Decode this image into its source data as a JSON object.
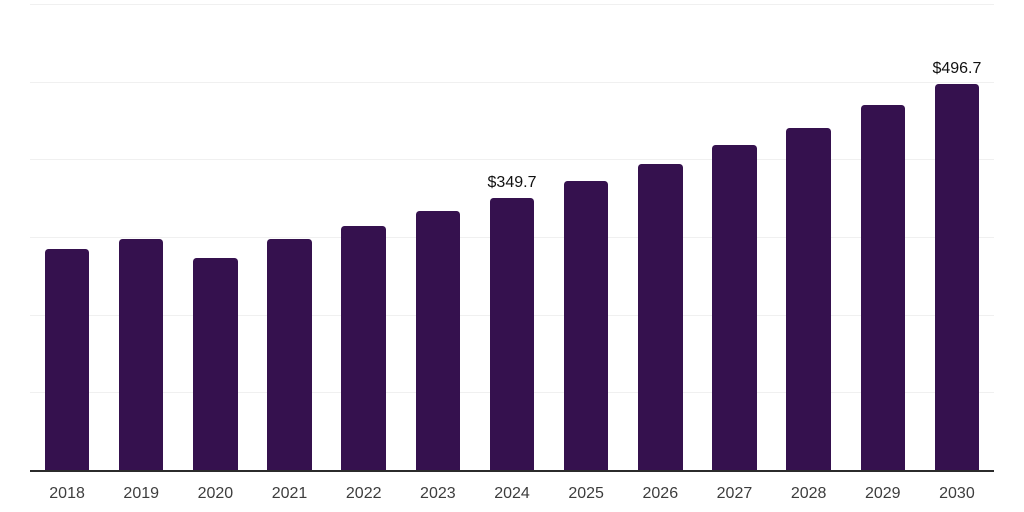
{
  "chart": {
    "background_color": "#ffffff",
    "bar_color": "#35114E",
    "axis_line_color": "#2b2b2b",
    "gridline_color": "#f0f0f0",
    "tick_label_color": "#3d3d3d",
    "value_label_color": "#111111"
  },
  "chart_data": {
    "type": "bar",
    "title": "",
    "xlabel": "",
    "ylabel": "",
    "categories": [
      "2018",
      "2019",
      "2020",
      "2021",
      "2022",
      "2023",
      "2024",
      "2025",
      "2026",
      "2027",
      "2028",
      "2029",
      "2030"
    ],
    "values": [
      285,
      298,
      273,
      297,
      314,
      333,
      349.7,
      372,
      394,
      418,
      441,
      470,
      496.7
    ],
    "value_labels": {
      "2024": "$349.7",
      "2030": "$496.7"
    },
    "ylim": [
      0,
      600
    ],
    "gridline_step": 100,
    "grid": true,
    "legend": false,
    "x_tick_labels_shown": true,
    "y_tick_labels_shown": false
  }
}
